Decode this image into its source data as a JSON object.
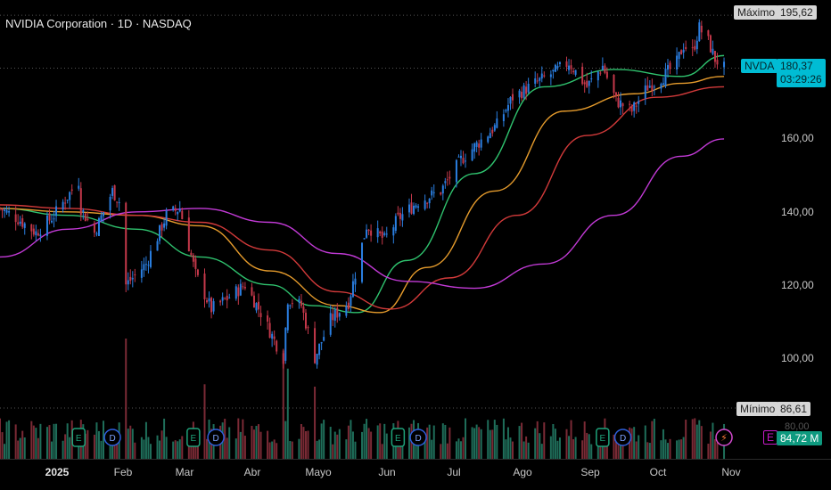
{
  "title": "NVIDIA Corporation · 1D · NASDAQ",
  "colors": {
    "up": "#2a7ee0",
    "down": "#c4384a",
    "ma_green": "#2fc26e",
    "ma_orange": "#e59b2c",
    "ma_red": "#d23a3a",
    "ma_magenta": "#c23ad6",
    "vol_up": "#1f6e5a",
    "vol_down": "#7a2a35",
    "badge_green": "#1ea27a",
    "badge_blue": "#2f5fdc",
    "tag_cyan": "#00bcd4"
  },
  "tags": {
    "max_label": "Máximo",
    "max_value": "195,62",
    "ticker": "NVDA",
    "last_price": "180,37",
    "countdown": "03:29:26",
    "min_label": "Mínimo",
    "min_value": "86,61",
    "volume_value": "84,72",
    "volume_unit": "M",
    "volume_partial": "80,00",
    "volume_icon": "E"
  },
  "axis": {
    "y_ticks": [
      "160,00",
      "140,00",
      "120,00",
      "100,00"
    ],
    "x_ticks": [
      "2025",
      "Feb",
      "Mar",
      "Abr",
      "Mayo",
      "Jun",
      "Jul",
      "Ago",
      "Sep",
      "Oct",
      "Nov"
    ]
  },
  "chart_data": {
    "type": "candlestick",
    "title": "NVIDIA Corporation · 1D · NASDAQ",
    "ylim": [
      82,
      200
    ],
    "y_ticks": [
      160,
      140,
      120,
      100
    ],
    "x_ticks": [
      "2025",
      "Feb",
      "Mar",
      "Abr",
      "Mayo",
      "Jun",
      "Jul",
      "Ago",
      "Sep",
      "Oct",
      "Nov"
    ],
    "x_start": "2024-12-02",
    "x_end": "2025-11-10",
    "high_marker": 195.62,
    "low_marker": 86.61,
    "last_price": 180.37,
    "close_path": [
      [
        "2024-12-02",
        140
      ],
      [
        "2024-12-10",
        137
      ],
      [
        "2024-12-18",
        133
      ],
      [
        "2024-12-26",
        138
      ],
      [
        "2025-01-06",
        148
      ],
      [
        "2025-01-07",
        140
      ],
      [
        "2025-01-13",
        133
      ],
      [
        "2025-01-21",
        145
      ],
      [
        "2025-01-24",
        142
      ],
      [
        "2025-01-27",
        118
      ],
      [
        "2025-02-05",
        124
      ],
      [
        "2025-02-14",
        138
      ],
      [
        "2025-02-20",
        140
      ],
      [
        "2025-02-27",
        121
      ],
      [
        "2025-03-06",
        111
      ],
      [
        "2025-03-13",
        114
      ],
      [
        "2025-03-21",
        118
      ],
      [
        "2025-03-28",
        110
      ],
      [
        "2025-04-03",
        102
      ],
      [
        "2025-04-07",
        97
      ],
      [
        "2025-04-09",
        114
      ],
      [
        "2025-04-15",
        112
      ],
      [
        "2025-04-21",
        97
      ],
      [
        "2025-04-28",
        108
      ],
      [
        "2025-05-06",
        113
      ],
      [
        "2025-05-14",
        135
      ],
      [
        "2025-05-22",
        131
      ],
      [
        "2025-05-28",
        137
      ],
      [
        "2025-06-06",
        142
      ],
      [
        "2025-06-16",
        145
      ],
      [
        "2025-06-25",
        154
      ],
      [
        "2025-07-03",
        159
      ],
      [
        "2025-07-11",
        164
      ],
      [
        "2025-07-18",
        172
      ],
      [
        "2025-07-28",
        176
      ],
      [
        "2025-08-05",
        179
      ],
      [
        "2025-08-12",
        182
      ],
      [
        "2025-08-20",
        175
      ],
      [
        "2025-08-27",
        181
      ],
      [
        "2025-09-02",
        171
      ],
      [
        "2025-09-09",
        168
      ],
      [
        "2025-09-16",
        175
      ],
      [
        "2025-09-23",
        178
      ],
      [
        "2025-09-29",
        182
      ],
      [
        "2025-10-02",
        187
      ],
      [
        "2025-10-06",
        185
      ],
      [
        "2025-10-09",
        192
      ],
      [
        "2025-10-13",
        188
      ],
      [
        "2025-10-16",
        183
      ],
      [
        "2025-10-20",
        180.37
      ]
    ],
    "moving_averages": [
      {
        "color": "#2fc26e",
        "points": [
          [
            "2024-12-02",
            140
          ],
          [
            "2025-01-01",
            138
          ],
          [
            "2025-02-01",
            134
          ],
          [
            "2025-03-01",
            126
          ],
          [
            "2025-04-01",
            118
          ],
          [
            "2025-04-20",
            112
          ],
          [
            "2025-05-10",
            110
          ],
          [
            "2025-06-01",
            125
          ],
          [
            "2025-07-01",
            150
          ],
          [
            "2025-08-01",
            175
          ],
          [
            "2025-09-01",
            180
          ],
          [
            "2025-10-01",
            178
          ],
          [
            "2025-10-20",
            184
          ]
        ]
      },
      {
        "color": "#e59b2c",
        "points": [
          [
            "2024-12-02",
            140
          ],
          [
            "2025-01-01",
            139
          ],
          [
            "2025-02-01",
            138
          ],
          [
            "2025-03-01",
            135
          ],
          [
            "2025-04-01",
            122
          ],
          [
            "2025-05-01",
            112
          ],
          [
            "2025-05-20",
            110
          ],
          [
            "2025-06-10",
            123
          ],
          [
            "2025-07-10",
            145
          ],
          [
            "2025-08-10",
            168
          ],
          [
            "2025-09-10",
            173
          ],
          [
            "2025-10-01",
            176
          ],
          [
            "2025-10-20",
            178
          ]
        ]
      },
      {
        "color": "#d23a3a",
        "points": [
          [
            "2024-12-02",
            141
          ],
          [
            "2025-01-01",
            140
          ],
          [
            "2025-02-01",
            138
          ],
          [
            "2025-03-01",
            136
          ],
          [
            "2025-04-01",
            128
          ],
          [
            "2025-05-01",
            116
          ],
          [
            "2025-05-25",
            111
          ],
          [
            "2025-06-20",
            120
          ],
          [
            "2025-07-20",
            138
          ],
          [
            "2025-08-20",
            161
          ],
          [
            "2025-09-20",
            172
          ],
          [
            "2025-10-20",
            175
          ]
        ]
      },
      {
        "color": "#c23ad6",
        "points": [
          [
            "2024-12-02",
            126
          ],
          [
            "2025-01-01",
            134
          ],
          [
            "2025-02-01",
            139
          ],
          [
            "2025-03-01",
            140
          ],
          [
            "2025-04-01",
            136
          ],
          [
            "2025-05-01",
            127
          ],
          [
            "2025-06-01",
            119
          ],
          [
            "2025-07-01",
            117
          ],
          [
            "2025-08-01",
            124
          ],
          [
            "2025-09-01",
            138
          ],
          [
            "2025-10-01",
            155
          ],
          [
            "2025-10-20",
            160
          ]
        ]
      }
    ]
  },
  "volume": {
    "marker_days": [
      "2025-01-06",
      "2025-01-21",
      "2025-02-26",
      "2025-03-08",
      "2025-05-28",
      "2025-06-06",
      "2025-08-27",
      "2025-09-05",
      "2025-10-20"
    ],
    "marker_types": [
      "green",
      "blue",
      "green",
      "blue",
      "green",
      "blue",
      "green",
      "blue",
      "flash"
    ],
    "marker_text": [
      "E",
      "D",
      "E",
      "D",
      "E",
      "D",
      "E",
      "D",
      "⚡"
    ],
    "spikes": [
      [
        "2025-01-27",
        1.0
      ],
      [
        "2025-04-07",
        0.9
      ],
      [
        "2025-04-09",
        0.75
      ],
      [
        "2025-03-03",
        0.62
      ],
      [
        "2025-04-21",
        0.6
      ]
    ]
  }
}
